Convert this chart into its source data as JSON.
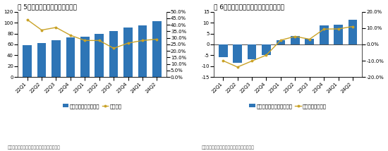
{
  "chart1": {
    "title": "图 5：谷歌云业务营收及同比增速",
    "categories": [
      "22Q1",
      "22Q2",
      "22Q3",
      "22Q4",
      "23Q1",
      "23Q2",
      "23Q3",
      "23Q4",
      "24Q1",
      "24Q2"
    ],
    "bar_values": [
      58,
      62,
      68,
      73,
      74,
      80,
      84,
      91,
      95,
      103
    ],
    "line_values": [
      0.44,
      0.36,
      0.38,
      0.32,
      0.28,
      0.28,
      0.22,
      0.26,
      0.28,
      0.29
    ],
    "bar_color": "#2E75B6",
    "line_color": "#C9A227",
    "ylim_left": [
      0,
      120
    ],
    "ylim_right": [
      0.0,
      0.5
    ],
    "yticks_left": [
      0,
      20,
      40,
      60,
      80,
      100,
      120
    ],
    "yticks_right": [
      0.0,
      0.05,
      0.1,
      0.15,
      0.2,
      0.25,
      0.3,
      0.35,
      0.4,
      0.45,
      0.5
    ],
    "legend1": "谷歌云营收（亿美元）",
    "legend2": "同比增速",
    "source": "数据来源：谷歌财报，广发证券发展研究中心"
  },
  "chart2": {
    "title": "图 6：谷歌云业务运营利润及运营利润率",
    "categories": [
      "22Q1",
      "22Q2",
      "22Q3",
      "22Q4",
      "23Q1",
      "23Q2",
      "23Q3",
      "23Q4",
      "24Q1",
      "24Q2"
    ],
    "bar_values": [
      -5.8,
      -8.6,
      -6.9,
      -4.8,
      1.9,
      3.9,
      2.7,
      8.6,
      9.0,
      11.3
    ],
    "line_values": [
      -0.1,
      -0.139,
      -0.102,
      -0.066,
      0.026,
      0.049,
      0.032,
      0.094,
      0.095,
      0.11
    ],
    "bar_color": "#2E75B6",
    "line_color": "#C9A227",
    "ylim_left": [
      -15,
      15
    ],
    "ylim_right": [
      -0.2,
      0.2
    ],
    "yticks_left": [
      -15,
      -10,
      -5,
      0,
      5,
      10,
      15
    ],
    "yticks_right": [
      -0.2,
      -0.1,
      0.0,
      0.1,
      0.2
    ],
    "legend1": "谷歌云运营利润（亿美元）",
    "legend2": "谷歌云运营利润率",
    "source": "数据来源：谷歌财报，广发证券发展研究中心"
  },
  "background_color": "#FFFFFF",
  "title_fontsize": 6.5,
  "tick_fontsize": 5,
  "source_fontsize": 4.5,
  "legend_fontsize": 5
}
